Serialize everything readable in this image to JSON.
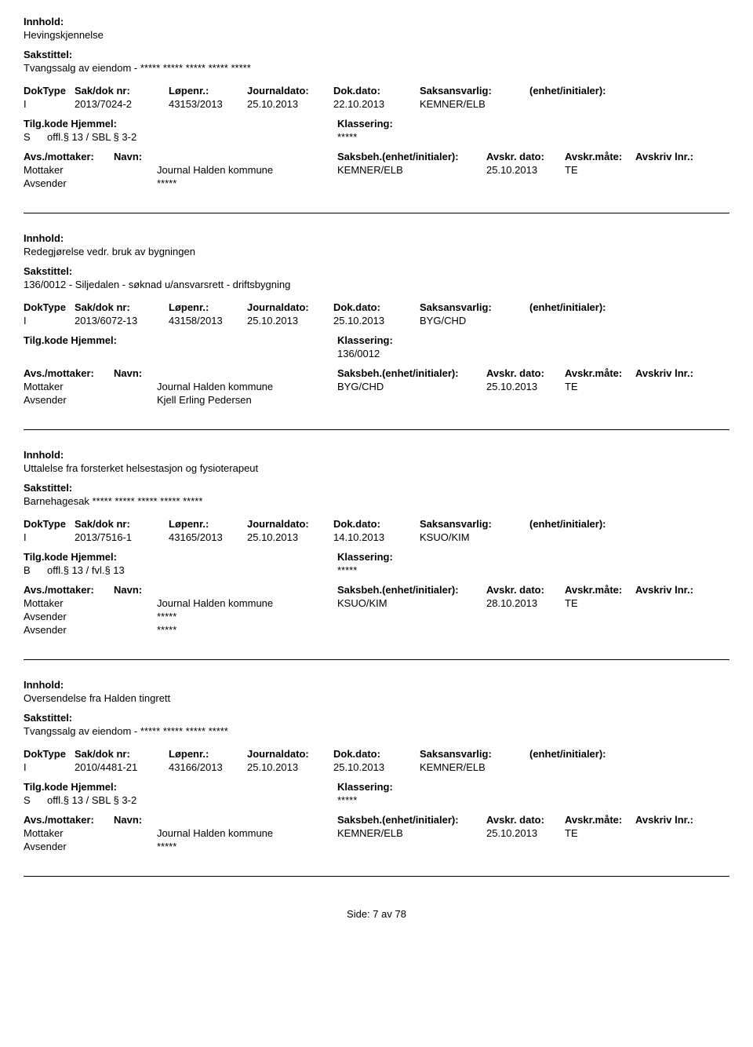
{
  "labels": {
    "innhold": "Innhold:",
    "sakstittel": "Sakstittel:",
    "doktype": "DokType",
    "saknr": "Sak/dok nr:",
    "lopenr": "Løpenr.:",
    "journaldato": "Journaldato:",
    "dokdato": "Dok.dato:",
    "saksansvarlig": "Saksansvarlig:",
    "enhet": "(enhet/initialer):",
    "tilgkode": "Tilg.kode",
    "hjemmel": "Hjemmel:",
    "klassering": "Klassering:",
    "avsmottaker": "Avs./mottaker:",
    "navn": "Navn:",
    "saksbeh": "Saksbeh.(enhet/initialer):",
    "avskrdato": "Avskr. dato:",
    "avskrmate": "Avskr.måte:",
    "avskrivlnr": "Avskriv lnr.:",
    "mottaker": "Mottaker",
    "avsender": "Avsender"
  },
  "records": [
    {
      "innhold": "Hevingskjennelse",
      "sakstittel": "Tvangssalg av eiendom - ***** ***** ***** ***** *****",
      "doktype": "I",
      "saknr": "2013/7024-2",
      "lopenr": "43153/2013",
      "journaldato": "25.10.2013",
      "dokdato": "22.10.2013",
      "saksansvarlig": "KEMNER/ELB",
      "enhet": "",
      "tilgkode": "S",
      "hjemmel": "offl.§ 13 / SBL § 3-2",
      "klassering": "*****",
      "parties": [
        {
          "role": "Mottaker",
          "navn": "Journal Halden kommune",
          "saksbeh": "KEMNER/ELB",
          "avskrdato": "25.10.2013",
          "avskrmate": "TE"
        },
        {
          "role": "Avsender",
          "navn": "*****",
          "saksbeh": "",
          "avskrdato": "",
          "avskrmate": ""
        }
      ]
    },
    {
      "innhold": "Redegjørelse vedr. bruk av bygningen",
      "sakstittel": "136/0012 - Siljedalen - søknad u/ansvarsrett - driftsbygning",
      "doktype": "I",
      "saknr": "2013/6072-13",
      "lopenr": "43158/2013",
      "journaldato": "25.10.2013",
      "dokdato": "25.10.2013",
      "saksansvarlig": "BYG/CHD",
      "enhet": "",
      "tilgkode": "",
      "hjemmel": "",
      "klassering": "136/0012",
      "parties": [
        {
          "role": "Mottaker",
          "navn": "Journal Halden kommune",
          "saksbeh": "BYG/CHD",
          "avskrdato": "25.10.2013",
          "avskrmate": "TE"
        },
        {
          "role": "Avsender",
          "navn": "Kjell Erling Pedersen",
          "saksbeh": "",
          "avskrdato": "",
          "avskrmate": ""
        }
      ]
    },
    {
      "innhold": "Uttalelse fra forsterket helsestasjon og fysioterapeut",
      "sakstittel": "Barnehagesak ***** ***** ***** ***** *****",
      "doktype": "I",
      "saknr": "2013/7516-1",
      "lopenr": "43165/2013",
      "journaldato": "25.10.2013",
      "dokdato": "14.10.2013",
      "saksansvarlig": "KSUO/KIM",
      "enhet": "",
      "tilgkode": "B",
      "hjemmel": "offl.§ 13 / fvl.§ 13",
      "klassering": "*****",
      "parties": [
        {
          "role": "Mottaker",
          "navn": "Journal Halden kommune",
          "saksbeh": "KSUO/KIM",
          "avskrdato": "28.10.2013",
          "avskrmate": "TE"
        },
        {
          "role": "Avsender",
          "navn": "*****",
          "saksbeh": "",
          "avskrdato": "",
          "avskrmate": ""
        },
        {
          "role": "Avsender",
          "navn": "*****",
          "saksbeh": "",
          "avskrdato": "",
          "avskrmate": ""
        }
      ]
    },
    {
      "innhold": "Oversendelse fra Halden tingrett",
      "sakstittel": "Tvangssalg av eiendom - ***** ***** ***** *****",
      "doktype": "I",
      "saknr": "2010/4481-21",
      "lopenr": "43166/2013",
      "journaldato": "25.10.2013",
      "dokdato": "25.10.2013",
      "saksansvarlig": "KEMNER/ELB",
      "enhet": "",
      "tilgkode": "S",
      "hjemmel": "offl.§ 13 / SBL § 3-2",
      "klassering": "*****",
      "parties": [
        {
          "role": "Mottaker",
          "navn": "Journal Halden kommune",
          "saksbeh": "KEMNER/ELB",
          "avskrdato": "25.10.2013",
          "avskrmate": "TE"
        },
        {
          "role": "Avsender",
          "navn": "*****",
          "saksbeh": "",
          "avskrdato": "",
          "avskrmate": ""
        }
      ]
    }
  ],
  "footer": "Side: 7 av 78"
}
